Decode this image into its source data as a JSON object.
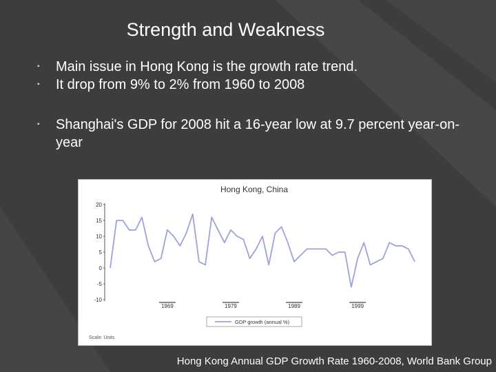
{
  "slide": {
    "title": "Strength and Weakness",
    "bullets": [
      "Main issue in Hong Kong is the growth rate trend.",
      "It drop from 9% to 2% from 1960 to 2008",
      "Shanghai's GDP for 2008 hit a 16-year low at 9.7 percent year-on-year"
    ],
    "caption": "Hong Kong Annual GDP Growth Rate 1960-2008, World Bank Group"
  },
  "chart_data": {
    "type": "line",
    "title": "Hong Kong, China",
    "legend": "GDP growth (annual %)",
    "legend_position": "bottom",
    "footnote": "Scale: Units",
    "line_color": "#9ba3d8",
    "grid": false,
    "ylim": [
      -10,
      20
    ],
    "xlim": [
      1960,
      2008
    ],
    "yticks": [
      20,
      15,
      10,
      5,
      0,
      -5,
      -10
    ],
    "ytick_labels": [
      "20",
      "15",
      "10",
      "5",
      "0",
      "-5",
      "-10"
    ],
    "xticks": [
      1969,
      1979,
      1989,
      1999
    ],
    "xtick_labels": [
      "1969",
      "1979",
      "1989",
      "1999"
    ],
    "series": [
      {
        "x": [
          1960,
          1961,
          1962,
          1963,
          1964,
          1965,
          1966,
          1967,
          1968,
          1969,
          1970,
          1971,
          1972,
          1973,
          1974,
          1975,
          1976,
          1977,
          1978,
          1979,
          1980,
          1981,
          1982,
          1983,
          1984,
          1985,
          1986,
          1987,
          1988,
          1989,
          1990,
          1991,
          1992,
          1993,
          1994,
          1995,
          1996,
          1997,
          1998,
          1999,
          2000,
          2001,
          2002,
          2003,
          2004,
          2005,
          2006,
          2007,
          2008
        ],
        "values": [
          0,
          15,
          15,
          12,
          12,
          16,
          7,
          2,
          3,
          12,
          10,
          7,
          11,
          17,
          2,
          1,
          16,
          12,
          8,
          12,
          10,
          9,
          3,
          6,
          10,
          1,
          11,
          13,
          8,
          2,
          4,
          6,
          6,
          6,
          6,
          4,
          5,
          5,
          -6,
          3,
          8,
          1,
          2,
          3,
          8,
          7,
          7,
          6,
          2
        ]
      }
    ]
  }
}
